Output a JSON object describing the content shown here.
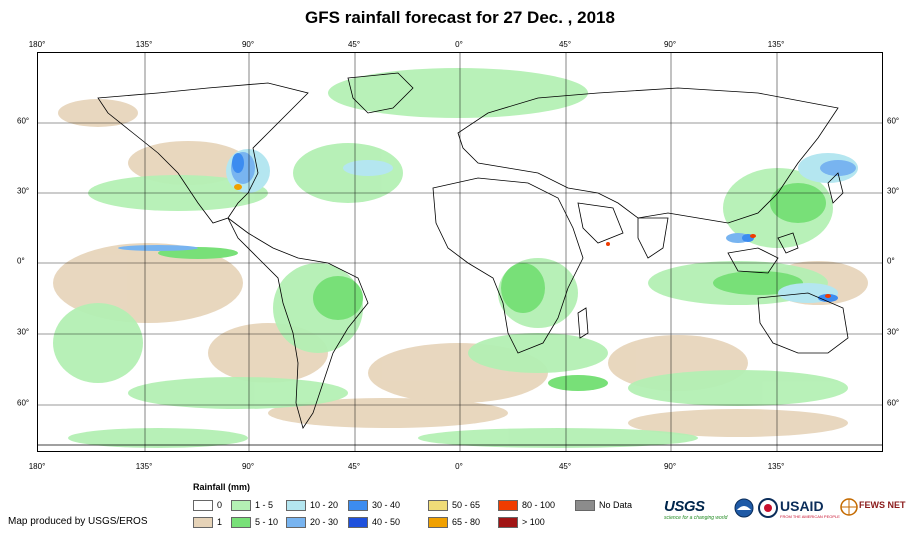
{
  "title": "GFS rainfall forecast for 27 Dec. , 2018",
  "map": {
    "lon_ticks": [
      "180°",
      "135°",
      "90°",
      "45°",
      "0°",
      "45°",
      "90°",
      "135°"
    ],
    "lat_ticks": [
      "60°",
      "30°",
      "0°",
      "30°",
      "60°"
    ],
    "colors": {
      "ocean": "#ffffff",
      "land_outline": "#000000",
      "grid": "#000000",
      "r1": "#e6d3b8",
      "r1_5": "#b4f0b4",
      "r5_10": "#78e078",
      "r10_20": "#b4e6f0",
      "r20_30": "#78b4f0",
      "r30_40": "#3c8cf0",
      "r40_50": "#1e50dc",
      "r65_80": "#f0a000",
      "r80_100": "#f03c00"
    }
  },
  "legend": {
    "title": "Rainfall (mm)",
    "items": [
      {
        "label": "0",
        "color": "#ffffff"
      },
      {
        "label": "1",
        "color": "#e6d3b8"
      },
      {
        "label": "1 - 5",
        "color": "#b4f0b4"
      },
      {
        "label": "5 - 10",
        "color": "#78e078"
      },
      {
        "label": "10 - 20",
        "color": "#b4e6f0"
      },
      {
        "label": "20 - 30",
        "color": "#78b4f0"
      },
      {
        "label": "30 - 40",
        "color": "#3c8cf0"
      },
      {
        "label": "40 - 50",
        "color": "#1e50dc"
      },
      {
        "label": "50 - 65",
        "color": "#f0dc78"
      },
      {
        "label": "65 - 80",
        "color": "#f0a000"
      },
      {
        "label": "80 - 100",
        "color": "#f03c00"
      },
      {
        "label": "> 100",
        "color": "#a01414"
      },
      {
        "label": "No Data",
        "color": "#8c8c8c"
      }
    ]
  },
  "credit": "Map produced by USGS/EROS",
  "logos": {
    "usgs": "USGS",
    "usgs_tagline": "science for a changing world",
    "usaid": "USAID",
    "usaid_tagline": "FROM THE AMERICAN PEOPLE",
    "fews": "FEWS NET",
    "noaa_icon": "noaa-seal-icon",
    "usaid_icon": "usaid-seal-icon",
    "fews_icon": "fews-globe-icon"
  }
}
